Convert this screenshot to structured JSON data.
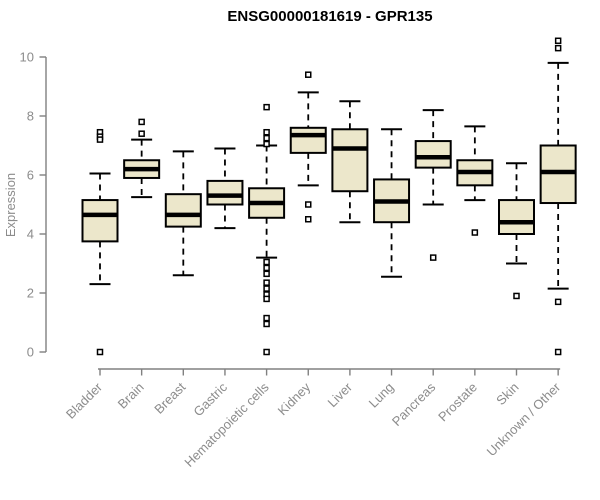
{
  "title": "ENSG00000181619 - GPR135",
  "chart_data": {
    "type": "boxplot",
    "title": "ENSG00000181619 - GPR135",
    "xlabel": "",
    "ylabel": "Expression",
    "ylim": [
      0,
      10
    ],
    "yticks": [
      0,
      2,
      4,
      6,
      8,
      10
    ],
    "grid": false,
    "legend": "none",
    "x_tick_rotation": 45,
    "categories": [
      "Bladder",
      "Brain",
      "Breast",
      "Gastric",
      "Hematopoietic cells",
      "Kidney",
      "Liver",
      "Lung",
      "Pancreas",
      "Prostate",
      "Skin",
      "Unknown / Other"
    ],
    "series": [
      {
        "category": "Bladder",
        "low": 2.3,
        "q1": 3.75,
        "median": 4.65,
        "q3": 5.15,
        "high": 6.05,
        "outliers": [
          7.45,
          7.3,
          7.2,
          0
        ]
      },
      {
        "category": "Brain",
        "low": 5.25,
        "q1": 5.9,
        "median": 6.2,
        "q3": 6.5,
        "high": 7.2,
        "outliers": [
          7.8,
          7.4
        ]
      },
      {
        "category": "Breast",
        "low": 2.6,
        "q1": 4.25,
        "median": 4.65,
        "q3": 5.35,
        "high": 6.8,
        "outliers": []
      },
      {
        "category": "Gastric",
        "low": 4.2,
        "q1": 5.0,
        "median": 5.3,
        "q3": 5.8,
        "high": 6.9,
        "outliers": []
      },
      {
        "category": "Hematopoietic cells",
        "low": 3.2,
        "q1": 4.55,
        "median": 5.05,
        "q3": 5.55,
        "high": 7.0,
        "outliers": [
          8.3,
          7.45,
          7.25,
          7.05,
          3.05,
          2.85,
          2.65,
          2.35,
          2.15,
          1.95,
          1.8,
          1.15,
          0.95,
          0
        ]
      },
      {
        "category": "Kidney",
        "low": 5.65,
        "q1": 6.75,
        "median": 7.35,
        "q3": 7.6,
        "high": 8.8,
        "outliers": [
          9.4,
          5.0,
          4.5
        ]
      },
      {
        "category": "Liver",
        "low": 4.4,
        "q1": 5.45,
        "median": 6.9,
        "q3": 7.55,
        "high": 8.5,
        "outliers": []
      },
      {
        "category": "Lung",
        "low": 2.55,
        "q1": 4.4,
        "median": 5.1,
        "q3": 5.85,
        "high": 7.55,
        "outliers": []
      },
      {
        "category": "Pancreas",
        "low": 5.0,
        "q1": 6.25,
        "median": 6.6,
        "q3": 7.15,
        "high": 8.2,
        "outliers": [
          3.2
        ]
      },
      {
        "category": "Prostate",
        "low": 5.15,
        "q1": 5.65,
        "median": 6.1,
        "q3": 6.5,
        "high": 7.65,
        "outliers": [
          4.05
        ]
      },
      {
        "category": "Skin",
        "low": 3.0,
        "q1": 4.0,
        "median": 4.4,
        "q3": 5.15,
        "high": 6.4,
        "outliers": [
          1.9
        ]
      },
      {
        "category": "Unknown / Other",
        "low": 2.15,
        "q1": 5.05,
        "median": 6.1,
        "q3": 7.0,
        "high": 9.8,
        "outliers": [
          10.55,
          10.3,
          1.7,
          0
        ]
      }
    ],
    "colors": {
      "box_fill": "#ece7cb",
      "box_stroke": "#000000",
      "median": "#000000",
      "whisker": "#000000",
      "outlier_stroke": "#000000",
      "outlier_fill": "#ffffff",
      "axis": "#808080",
      "tick_label": "#8c8c8c",
      "title": "#000000",
      "background": "#ffffff"
    }
  }
}
